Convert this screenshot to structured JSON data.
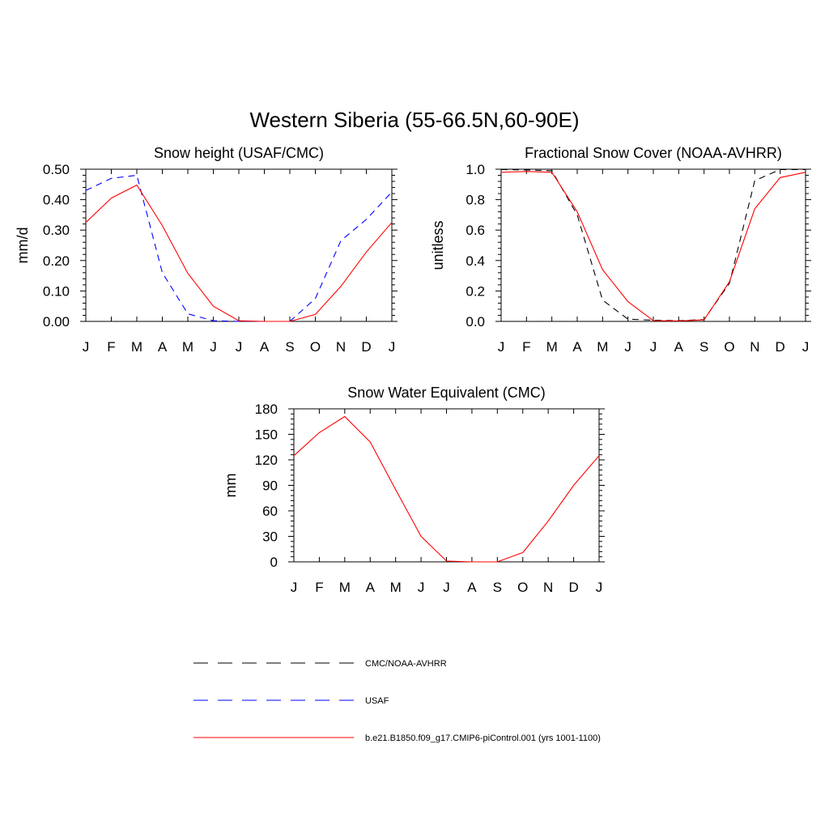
{
  "figure_title": "Western Siberia (55-66.5N,60-90E)",
  "months": [
    "J",
    "F",
    "M",
    "A",
    "M",
    "J",
    "J",
    "A",
    "S",
    "O",
    "N",
    "D",
    "J"
  ],
  "legend": [
    {
      "label": "CMC/NOAA-AVHRR",
      "color": "#000000",
      "dash": true
    },
    {
      "label": "USAF",
      "color": "#0000ff",
      "dash": true
    },
    {
      "label": "b.e21.B1850.f09_g17.CMIP6-piControl.001 (yrs 1001-1100)",
      "color": "#ff0000",
      "dash": false
    }
  ],
  "chart_data": [
    {
      "type": "line",
      "title": "Snow height (USAF/CMC)",
      "ylabel": "mm/d",
      "ylim": [
        0,
        0.5
      ],
      "yticks": [
        0,
        0.1,
        0.2,
        0.3,
        0.4,
        0.5
      ],
      "yticklabels": [
        "0.00",
        "0.10",
        "0.20",
        "0.30",
        "0.40",
        "0.50"
      ],
      "x": [
        "J",
        "F",
        "M",
        "A",
        "M",
        "J",
        "J",
        "A",
        "S",
        "O",
        "N",
        "D",
        "J"
      ],
      "series": [
        {
          "name": "CMC/NOAA-AVHRR",
          "color": "#000000",
          "dash": true,
          "values": [
            0,
            0,
            0,
            0,
            0,
            0,
            0,
            0,
            0,
            0,
            0,
            0,
            0
          ]
        },
        {
          "name": "USAF",
          "color": "#0000ff",
          "dash": true,
          "values": [
            0.43,
            0.47,
            0.48,
            0.16,
            0.025,
            0.002,
            0.0,
            0.0,
            0.0,
            0.075,
            0.265,
            0.335,
            0.425
          ]
        },
        {
          "name": "b.e21.B1850.f09_g17.CMIP6-piControl.001 (yrs 1001-1100)",
          "color": "#ff0000",
          "dash": false,
          "values": [
            0.325,
            0.405,
            0.448,
            0.315,
            0.158,
            0.05,
            0.002,
            0.0,
            0.0,
            0.023,
            0.115,
            0.228,
            0.325
          ]
        }
      ]
    },
    {
      "type": "line",
      "title": "Fractional Snow Cover (NOAA-AVHRR)",
      "ylabel": "unitless",
      "ylim": [
        0,
        1
      ],
      "yticks": [
        0,
        0.2,
        0.4,
        0.6,
        0.8,
        1.0
      ],
      "yticklabels": [
        "0.0",
        "0.2",
        "0.4",
        "0.6",
        "0.8",
        "1.0"
      ],
      "x": [
        "J",
        "F",
        "M",
        "A",
        "M",
        "J",
        "J",
        "A",
        "S",
        "O",
        "N",
        "D",
        "J"
      ],
      "series": [
        {
          "name": "CMC/NOAA-AVHRR",
          "color": "#000000",
          "dash": true,
          "values": [
            0.998,
            0.995,
            0.99,
            0.7,
            0.14,
            0.015,
            0.008,
            0.005,
            0.012,
            0.25,
            0.925,
            0.998,
            0.998
          ]
        },
        {
          "name": "b.e21.B1850.f09_g17.CMIP6-piControl.001 (yrs 1001-1100)",
          "color": "#ff0000",
          "dash": false,
          "values": [
            0.98,
            0.985,
            0.98,
            0.72,
            0.34,
            0.13,
            0.005,
            0.003,
            0.01,
            0.26,
            0.74,
            0.945,
            0.98
          ]
        }
      ]
    },
    {
      "type": "line",
      "title": "Snow Water Equivalent (CMC)",
      "ylabel": "mm",
      "ylim": [
        0,
        180
      ],
      "yticks": [
        0,
        30,
        60,
        90,
        120,
        150,
        180
      ],
      "yticklabels": [
        "0",
        "30",
        "60",
        "90",
        "120",
        "150",
        "180"
      ],
      "x": [
        "J",
        "F",
        "M",
        "A",
        "M",
        "J",
        "J",
        "A",
        "S",
        "O",
        "N",
        "D",
        "J"
      ],
      "series": [
        {
          "name": "CMC/NOAA-AVHRR",
          "color": "#000000",
          "dash": true,
          "values": [
            0,
            0,
            0,
            0,
            0,
            0,
            0,
            0,
            0,
            0,
            0,
            0,
            0
          ]
        },
        {
          "name": "b.e21.B1850.f09_g17.CMIP6-piControl.001 (yrs 1001-1100)",
          "color": "#ff0000",
          "dash": false,
          "values": [
            125,
            152,
            171,
            141,
            85,
            30,
            1,
            0,
            0,
            11,
            48,
            90,
            125
          ]
        }
      ]
    }
  ]
}
